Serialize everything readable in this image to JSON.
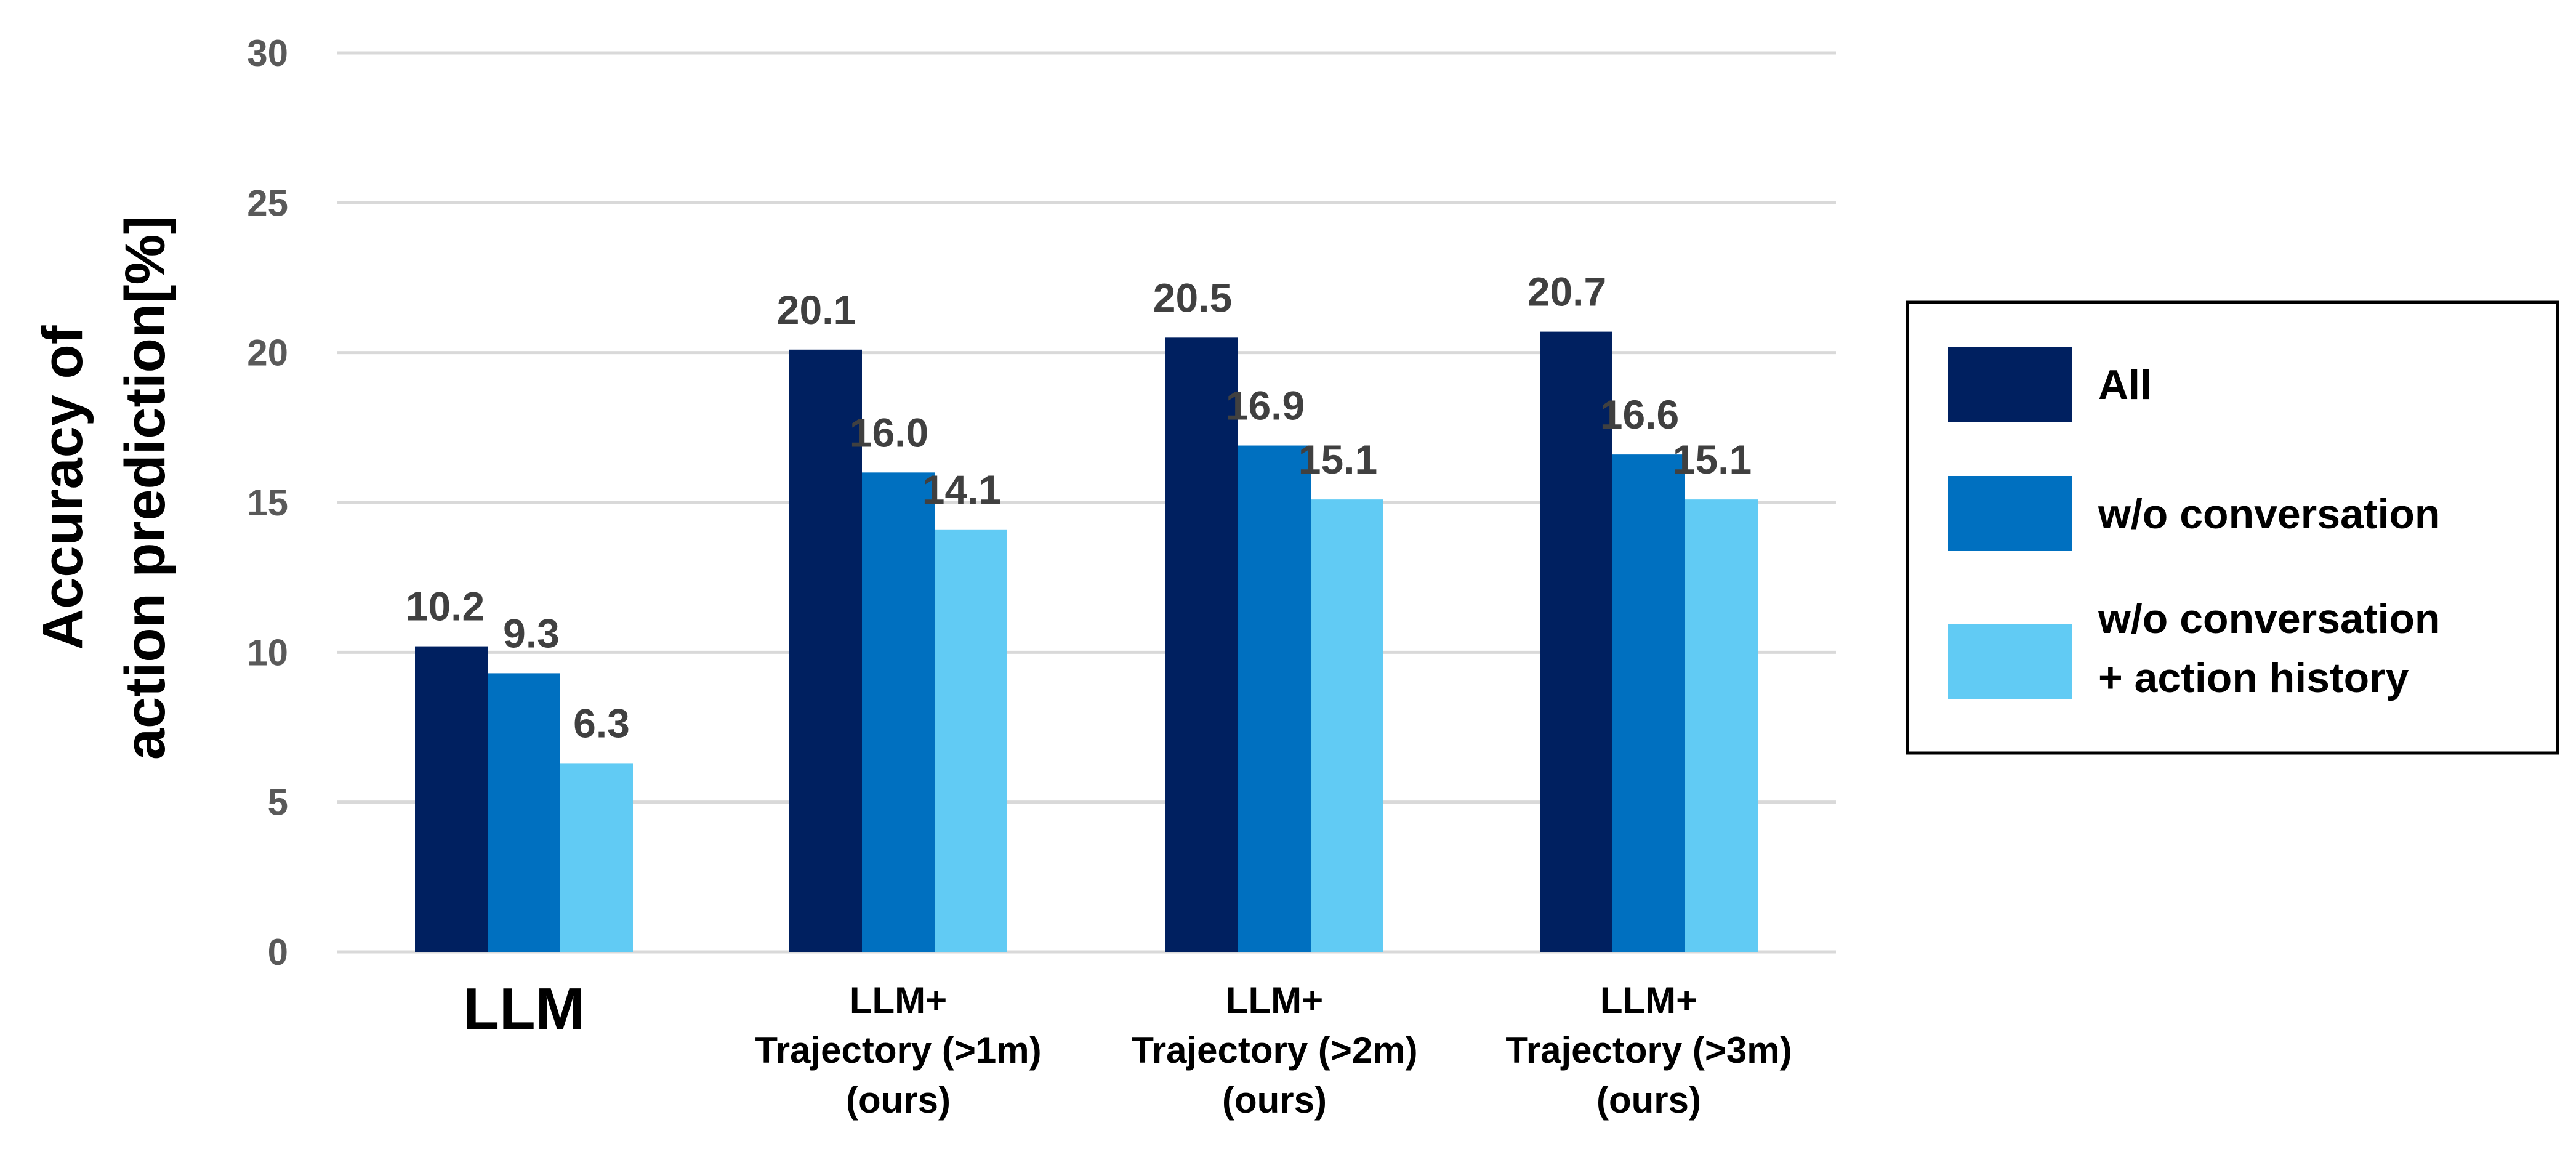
{
  "chart_data": {
    "type": "bar",
    "ylabel": [
      "Accuracy of",
      "action prediction[%]"
    ],
    "xlabel": "",
    "ylim": [
      0,
      30
    ],
    "yticks": [
      0,
      5,
      10,
      15,
      20,
      25,
      30
    ],
    "grid": true,
    "legend_position": "right",
    "categories": [
      [
        "LLM"
      ],
      [
        "LLM+",
        "Trajectory (>1m)",
        "(ours)"
      ],
      [
        "LLM+",
        "Trajectory (>2m)",
        "(ours)"
      ],
      [
        "LLM+",
        "Trajectory (>3m)",
        "(ours)"
      ]
    ],
    "series": [
      {
        "name": "All",
        "color": "#002060",
        "values": [
          10.2,
          20.1,
          20.5,
          20.7
        ],
        "labels": [
          "10.2",
          "20.1",
          "20.5",
          "20.7"
        ]
      },
      {
        "name": "w/o conversation",
        "color": "#0070C0",
        "values": [
          9.3,
          16.0,
          16.9,
          16.6
        ],
        "labels": [
          "9.3",
          "16.0",
          "16.9",
          "16.6"
        ]
      },
      {
        "name": "w/o conversation\n+ action history",
        "legend_lines": [
          "w/o conversation",
          "+ action history"
        ],
        "color": "#61CBF4",
        "values": [
          6.3,
          14.1,
          15.1,
          15.1
        ],
        "labels": [
          "6.3",
          "14.1",
          "15.1",
          "15.1"
        ]
      }
    ],
    "gridline_color": "#D9D9D9"
  }
}
